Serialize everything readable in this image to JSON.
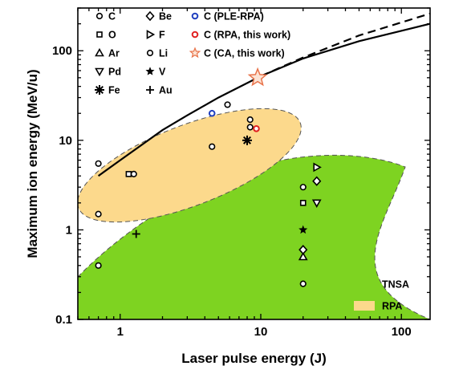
{
  "chart_data": {
    "type": "scatter",
    "xlabel": "Laser pulse energy (J)",
    "ylabel": "Maximum ion energy (MeV/u)",
    "x_scale": "log",
    "y_scale": "log",
    "xlim": [
      0.5,
      160
    ],
    "ylim": [
      0.1,
      300
    ],
    "x_ticks": [
      "1",
      "10",
      "100"
    ],
    "y_ticks": [
      "0.1",
      "1",
      "10",
      "100"
    ],
    "grid": false,
    "legend_position": "top-left",
    "regions": [
      {
        "name": "TNSA",
        "color": "#7ed321"
      },
      {
        "name": "RPA",
        "color": "#fcd98c"
      }
    ],
    "series": [
      {
        "name": "C",
        "marker": "circle",
        "points": [
          [
            0.7,
            5.5
          ],
          [
            0.7,
            1.5
          ],
          [
            0.7,
            0.4
          ],
          [
            1.25,
            4.2
          ],
          [
            4.5,
            8.5
          ],
          [
            5.8,
            25
          ],
          [
            8.4,
            17
          ],
          [
            8.4,
            14
          ],
          [
            20,
            3
          ],
          [
            20,
            0.25
          ]
        ]
      },
      {
        "name": "O",
        "marker": "square",
        "points": [
          [
            1.15,
            4.2
          ],
          [
            20,
            2
          ]
        ]
      },
      {
        "name": "Ar",
        "marker": "triangle-up",
        "points": [
          [
            20,
            0.5
          ]
        ]
      },
      {
        "name": "Pd",
        "marker": "triangle-down",
        "points": [
          [
            25,
            2
          ]
        ]
      },
      {
        "name": "Fe",
        "marker": "asterisk",
        "points": [
          [
            8,
            10
          ]
        ]
      },
      {
        "name": "Be",
        "marker": "diamond",
        "points": [
          [
            25,
            3.5
          ],
          [
            20,
            0.6
          ]
        ]
      },
      {
        "name": "F",
        "marker": "triangle-right",
        "points": [
          [
            25,
            5
          ]
        ]
      },
      {
        "name": "Li",
        "marker": "circle",
        "points": []
      },
      {
        "name": "V",
        "marker": "star",
        "points": [
          [
            20,
            1
          ]
        ]
      },
      {
        "name": "Au",
        "marker": "plus",
        "points": [
          [
            1.3,
            0.9
          ]
        ]
      },
      {
        "name": "C (PLE-RPA)",
        "marker": "circle",
        "color": "#1f3fbf",
        "points": [
          [
            4.5,
            20
          ]
        ]
      },
      {
        "name": "C (RPA, this work)",
        "marker": "circle",
        "color": "#e02020",
        "points": [
          [
            9.3,
            13.5
          ]
        ]
      },
      {
        "name": "C (CA, this work)",
        "marker": "star-large",
        "color": "#e8734a",
        "points": [
          [
            9.5,
            50
          ]
        ]
      }
    ],
    "lines": [
      {
        "style": "solid",
        "points": [
          [
            0.7,
            4
          ],
          [
            1,
            6
          ],
          [
            2,
            13
          ],
          [
            3,
            19
          ],
          [
            5,
            30
          ],
          [
            10,
            52
          ],
          [
            20,
            82
          ],
          [
            50,
            128
          ],
          [
            160,
            200
          ]
        ]
      },
      {
        "style": "dashed",
        "points": [
          [
            10,
            52
          ],
          [
            20,
            84
          ],
          [
            50,
            148
          ],
          [
            160,
            260
          ]
        ]
      }
    ]
  }
}
